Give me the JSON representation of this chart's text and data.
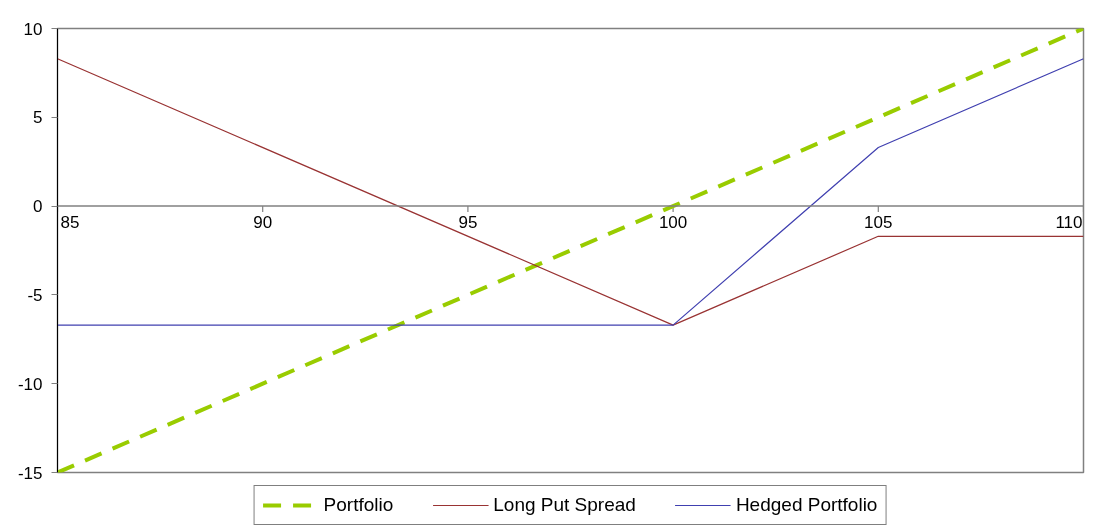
{
  "chart_data": {
    "type": "line",
    "x": [
      85,
      100,
      105,
      110
    ],
    "series": [
      {
        "name": "Portfolio",
        "color": "#99cc00",
        "line_style": "dashed",
        "values": [
          -15,
          0,
          5,
          10
        ]
      },
      {
        "name": "Long Put Spread",
        "color": "#993333",
        "line_style": "solid",
        "values": [
          8.3,
          -6.7,
          -1.7,
          -1.7
        ]
      },
      {
        "name": "Hedged Portfolio",
        "color": "#4040b0",
        "line_style": "solid",
        "values": [
          -6.7,
          -6.7,
          3.3,
          8.3
        ]
      }
    ],
    "xlim": [
      85,
      110
    ],
    "ylim": [
      -15,
      10
    ],
    "xticks": [
      85,
      90,
      95,
      100,
      105,
      110
    ],
    "yticks": [
      -15,
      -10,
      -5,
      0,
      5,
      10
    ],
    "grid": false,
    "legend": "bottom",
    "marker": "none"
  }
}
